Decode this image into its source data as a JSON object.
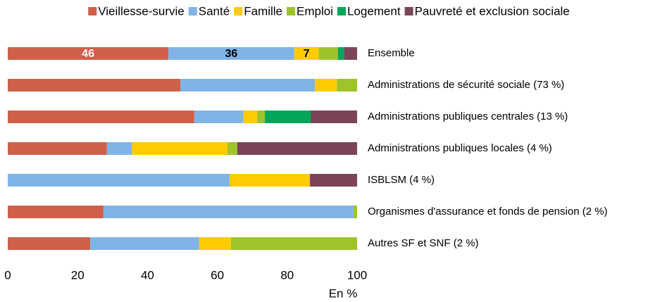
{
  "chart_data": {
    "type": "stacked-bar-horizontal",
    "categories": [
      "Ensemble",
      "Administrations de sécurité sociale (73 %)",
      "Administrations publiques centrales (13 %)",
      "Administrations publiques locales (4 %)",
      "ISBLSM (4 %)",
      "Organismes d'assurance et fonds de pension (2 %)",
      "Autres SF et SNF (2 %)"
    ],
    "series": [
      {
        "name": "Vieillesse-survie",
        "color": "#d0604b",
        "values": [
          46,
          49.4,
          53.4,
          28.4,
          0,
          27.4,
          23.6
        ],
        "value_labels": [
          "46",
          null,
          null,
          null,
          null,
          null,
          null
        ]
      },
      {
        "name": "Santé",
        "color": "#80b4e6",
        "values": [
          36,
          38.5,
          14.1,
          7.1,
          63.5,
          71.6,
          31.2
        ],
        "value_labels": [
          "36",
          null,
          null,
          null,
          null,
          null,
          null
        ]
      },
      {
        "name": "Famille",
        "color": "#ffcc00",
        "values": [
          7,
          6.3,
          3.9,
          27.4,
          23,
          0,
          9.1
        ],
        "value_labels": [
          "7",
          null,
          null,
          null,
          null,
          null,
          null
        ]
      },
      {
        "name": "Emploi",
        "color": "#9ec42b",
        "values": [
          5.5,
          5.8,
          2.2,
          2.8,
          0,
          1,
          36.1
        ]
      },
      {
        "name": "Logement",
        "color": "#00a65a",
        "values": [
          1.8,
          0,
          13.1,
          0,
          0,
          0,
          0
        ]
      },
      {
        "name": "Pauvreté et exclusion sociale",
        "color": "#7b4459",
        "values": [
          3.7,
          0,
          13.3,
          34.3,
          13.5,
          0,
          0
        ]
      }
    ],
    "xlim": [
      0,
      100
    ],
    "xticks": [
      0,
      20,
      40,
      60,
      80,
      100
    ],
    "xlabel": "En %",
    "legend": "top"
  }
}
